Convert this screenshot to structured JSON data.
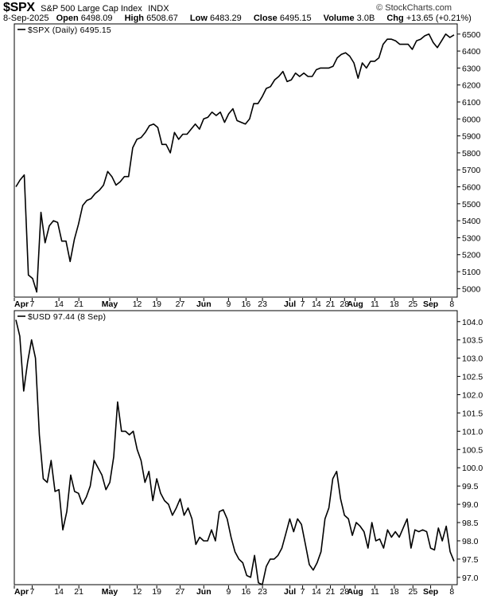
{
  "header": {
    "symbol": "$SPX",
    "name": "S&P 500 Large Cap Index",
    "exchange": "INDX",
    "brand": "© StockCharts.com",
    "date": "8-Sep-2025",
    "open_label": "Open",
    "open": "6498.09",
    "high_label": "High",
    "high": "6508.67",
    "low_label": "Low",
    "low": "6483.29",
    "close_label": "Close",
    "close": "6495.15",
    "volume_label": "Volume",
    "volume": "3.0B",
    "chg_label": "Chg",
    "chg": "+13.65 (+0.21%)"
  },
  "colors": {
    "line": "#000000",
    "frame": "#000000",
    "background": "#ffffff"
  },
  "chart_data": [
    {
      "type": "line",
      "legend": "$SPX (Daily) 6495.15",
      "legend_position": "top-left",
      "ylim": [
        4950,
        6560
      ],
      "y_ticks": [
        5000,
        5100,
        5200,
        5300,
        5400,
        5500,
        5600,
        5700,
        5800,
        5900,
        6000,
        6100,
        6200,
        6300,
        6400,
        6500
      ],
      "grid": false,
      "series": [
        {
          "values": [
            5600,
            5640,
            5670,
            5080,
            5060,
            4980,
            5450,
            5270,
            5370,
            5400,
            5390,
            5280,
            5280,
            5160,
            5290,
            5380,
            5490,
            5520,
            5530,
            5560,
            5580,
            5610,
            5690,
            5660,
            5610,
            5630,
            5660,
            5660,
            5830,
            5880,
            5890,
            5920,
            5960,
            5970,
            5950,
            5850,
            5850,
            5800,
            5920,
            5880,
            5910,
            5910,
            5940,
            5970,
            5940,
            6000,
            6010,
            6040,
            6020,
            6040,
            5980,
            6030,
            6060,
            5990,
            5980,
            5970,
            6000,
            6090,
            6090,
            6130,
            6180,
            6190,
            6230,
            6250,
            6280,
            6220,
            6230,
            6270,
            6250,
            6270,
            6250,
            6250,
            6290,
            6300,
            6300,
            6300,
            6310,
            6360,
            6380,
            6390,
            6370,
            6330,
            6240,
            6330,
            6300,
            6340,
            6340,
            6360,
            6440,
            6470,
            6470,
            6460,
            6440,
            6440,
            6440,
            6410,
            6460,
            6470,
            6490,
            6500,
            6450,
            6420,
            6460,
            6500,
            6480,
            6495.15
          ]
        }
      ]
    },
    {
      "type": "line",
      "legend": "$USD 97.44 (8 Sep)",
      "legend_position": "top-left",
      "ylim": [
        96.8,
        104.3
      ],
      "y_ticks": [
        "97.0",
        "97.5",
        "98.0",
        "98.5",
        "99.0",
        "99.5",
        "100.0",
        "100.5",
        "101.0",
        "101.5",
        "102.0",
        "102.5",
        "103.0",
        "103.5",
        "104.0"
      ],
      "grid": false,
      "series": [
        {
          "values": [
            104.05,
            103.6,
            102.1,
            102.9,
            103.5,
            103.0,
            100.9,
            99.7,
            99.6,
            100.2,
            99.35,
            99.4,
            98.3,
            98.8,
            99.8,
            99.35,
            99.3,
            99.0,
            99.2,
            99.5,
            100.2,
            100.0,
            99.8,
            99.4,
            99.6,
            100.3,
            101.8,
            101.0,
            101.0,
            100.9,
            101.0,
            100.5,
            100.2,
            99.6,
            99.9,
            99.1,
            99.7,
            99.3,
            99.1,
            99.0,
            98.7,
            98.9,
            99.15,
            98.7,
            98.9,
            98.6,
            97.9,
            98.1,
            98.0,
            98.0,
            98.3,
            98.0,
            98.8,
            98.85,
            98.6,
            98.1,
            97.7,
            97.5,
            97.4,
            97.05,
            97.0,
            97.6,
            96.85,
            96.8,
            97.3,
            97.5,
            97.5,
            97.6,
            97.8,
            98.2,
            98.6,
            98.25,
            98.6,
            98.45,
            97.9,
            97.35,
            97.2,
            97.4,
            97.7,
            98.6,
            98.9,
            99.7,
            99.9,
            99.15,
            98.7,
            98.6,
            98.15,
            98.5,
            98.4,
            98.25,
            97.8,
            98.5,
            98.0,
            98.05,
            97.8,
            98.3,
            98.1,
            98.25,
            98.1,
            98.35,
            98.6,
            97.8,
            98.3,
            98.25,
            98.3,
            98.25,
            97.8,
            97.75,
            98.35,
            98.0,
            98.4,
            97.7,
            97.44
          ]
        }
      ]
    }
  ],
  "x_axis": {
    "labels": [
      {
        "text": "Apr",
        "bold": true,
        "pos": 0.0
      },
      {
        "text": "7",
        "bold": false,
        "pos": 0.052
      },
      {
        "text": "14",
        "bold": false,
        "pos": 0.13
      },
      {
        "text": "21",
        "bold": false,
        "pos": 0.188
      },
      {
        "text": "May",
        "bold": true,
        "pos": 0.278
      },
      {
        "text": "12",
        "bold": false,
        "pos": 0.358
      },
      {
        "text": "19",
        "bold": false,
        "pos": 0.415
      },
      {
        "text": "27",
        "bold": false,
        "pos": 0.483
      },
      {
        "text": "Jun",
        "bold": true,
        "pos": 0.552
      },
      {
        "text": "9",
        "bold": false,
        "pos": 0.624
      },
      {
        "text": "16",
        "bold": false,
        "pos": 0.675
      },
      {
        "text": "23",
        "bold": false,
        "pos": 0.723
      },
      {
        "text": "Jul",
        "bold": true,
        "pos": 0.803
      },
      {
        "text": "7",
        "bold": false,
        "pos": 0.84
      },
      {
        "text": "14",
        "bold": false,
        "pos": 0.88
      },
      {
        "text": "21",
        "bold": false,
        "pos": 0.921
      },
      {
        "text": "28",
        "bold": false,
        "pos": 0.962
      },
      {
        "text": "Aug",
        "bold": true,
        "pos": 0.993
      }
    ],
    "labels2": [
      {
        "text": "11",
        "bold": false,
        "pos": 0.07
      },
      {
        "text": "18",
        "bold": false,
        "pos": 0.29
      },
      {
        "text": "25",
        "bold": false,
        "pos": 0.5
      },
      {
        "text": "Sep",
        "bold": true,
        "pos": 0.7
      },
      {
        "text": "8",
        "bold": false,
        "pos": 0.94
      }
    ]
  }
}
